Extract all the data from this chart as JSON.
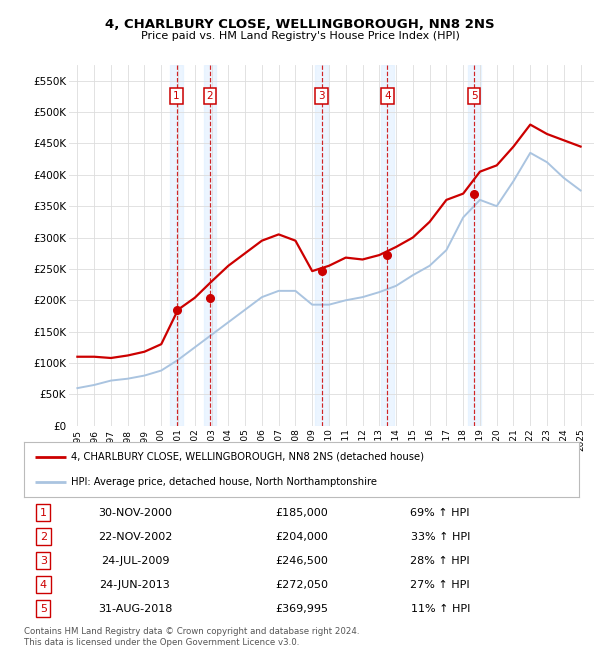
{
  "title": "4, CHARLBURY CLOSE, WELLINGBOROUGH, NN8 2NS",
  "subtitle": "Price paid vs. HM Land Registry's House Price Index (HPI)",
  "ylim": [
    0,
    575000
  ],
  "yticks": [
    0,
    50000,
    100000,
    150000,
    200000,
    250000,
    300000,
    350000,
    400000,
    450000,
    500000,
    550000
  ],
  "ytick_labels": [
    "£0",
    "£50K",
    "£100K",
    "£150K",
    "£200K",
    "£250K",
    "£300K",
    "£350K",
    "£400K",
    "£450K",
    "£500K",
    "£550K"
  ],
  "xlim_start": 1994.5,
  "xlim_end": 2025.8,
  "xtick_years": [
    1995,
    1996,
    1997,
    1998,
    1999,
    2000,
    2001,
    2002,
    2003,
    2004,
    2005,
    2006,
    2007,
    2008,
    2009,
    2010,
    2011,
    2012,
    2013,
    2014,
    2015,
    2016,
    2017,
    2018,
    2019,
    2020,
    2021,
    2022,
    2023,
    2024,
    2025
  ],
  "plot_bg_color": "#ffffff",
  "grid_color": "#dddddd",
  "hpi_line_color": "#aac4e0",
  "price_line_color": "#cc0000",
  "sale_marker_color": "#cc0000",
  "sale_vline_color": "#cc0000",
  "sale_highlight_color": "#ddeeff",
  "sales": [
    {
      "num": 1,
      "year": 2000.91,
      "price": 185000,
      "date": "30-NOV-2000",
      "pct": "69% ↑ HPI"
    },
    {
      "num": 2,
      "year": 2002.9,
      "price": 204000,
      "date": "22-NOV-2002",
      "pct": "33% ↑ HPI"
    },
    {
      "num": 3,
      "year": 2009.56,
      "price": 246500,
      "date": "24-JUL-2009",
      "pct": "28% ↑ HPI"
    },
    {
      "num": 4,
      "year": 2013.48,
      "price": 272050,
      "date": "24-JUN-2013",
      "pct": "27% ↑ HPI"
    },
    {
      "num": 5,
      "year": 2018.66,
      "price": 369995,
      "date": "31-AUG-2018",
      "pct": "11% ↑ HPI"
    }
  ],
  "legend_line1": "4, CHARLBURY CLOSE, WELLINGBOROUGH, NN8 2NS (detached house)",
  "legend_line2": "HPI: Average price, detached house, North Northamptonshire",
  "legend_color1": "#cc0000",
  "legend_color2": "#aac4e0",
  "footnote": "Contains HM Land Registry data © Crown copyright and database right 2024.\nThis data is licensed under the Open Government Licence v3.0.",
  "hpi_years": [
    1995,
    1996,
    1997,
    1998,
    1999,
    2000,
    2001,
    2002,
    2003,
    2004,
    2005,
    2006,
    2007,
    2008,
    2009,
    2010,
    2011,
    2012,
    2013,
    2014,
    2015,
    2016,
    2017,
    2018,
    2019,
    2020,
    2021,
    2022,
    2023,
    2024,
    2025
  ],
  "hpi_values": [
    60000,
    65000,
    72000,
    75000,
    80000,
    88000,
    105000,
    125000,
    145000,
    165000,
    185000,
    205000,
    215000,
    215000,
    193000,
    193000,
    200000,
    205000,
    213000,
    223000,
    240000,
    255000,
    280000,
    332000,
    360000,
    350000,
    390000,
    435000,
    420000,
    395000,
    375000
  ],
  "price_years": [
    1995,
    1996,
    1997,
    1998,
    1999,
    2000,
    2001,
    2002,
    2003,
    2004,
    2005,
    2006,
    2007,
    2008,
    2009,
    2010,
    2011,
    2012,
    2013,
    2014,
    2015,
    2016,
    2017,
    2018,
    2019,
    2020,
    2021,
    2022,
    2023,
    2024,
    2025
  ],
  "price_values": [
    110000,
    110000,
    108000,
    112000,
    118000,
    130000,
    185000,
    204000,
    230000,
    255000,
    275000,
    295000,
    305000,
    295000,
    246500,
    255000,
    268000,
    265000,
    272050,
    285000,
    300000,
    325000,
    360000,
    369995,
    405000,
    415000,
    445000,
    480000,
    465000,
    455000,
    445000
  ]
}
